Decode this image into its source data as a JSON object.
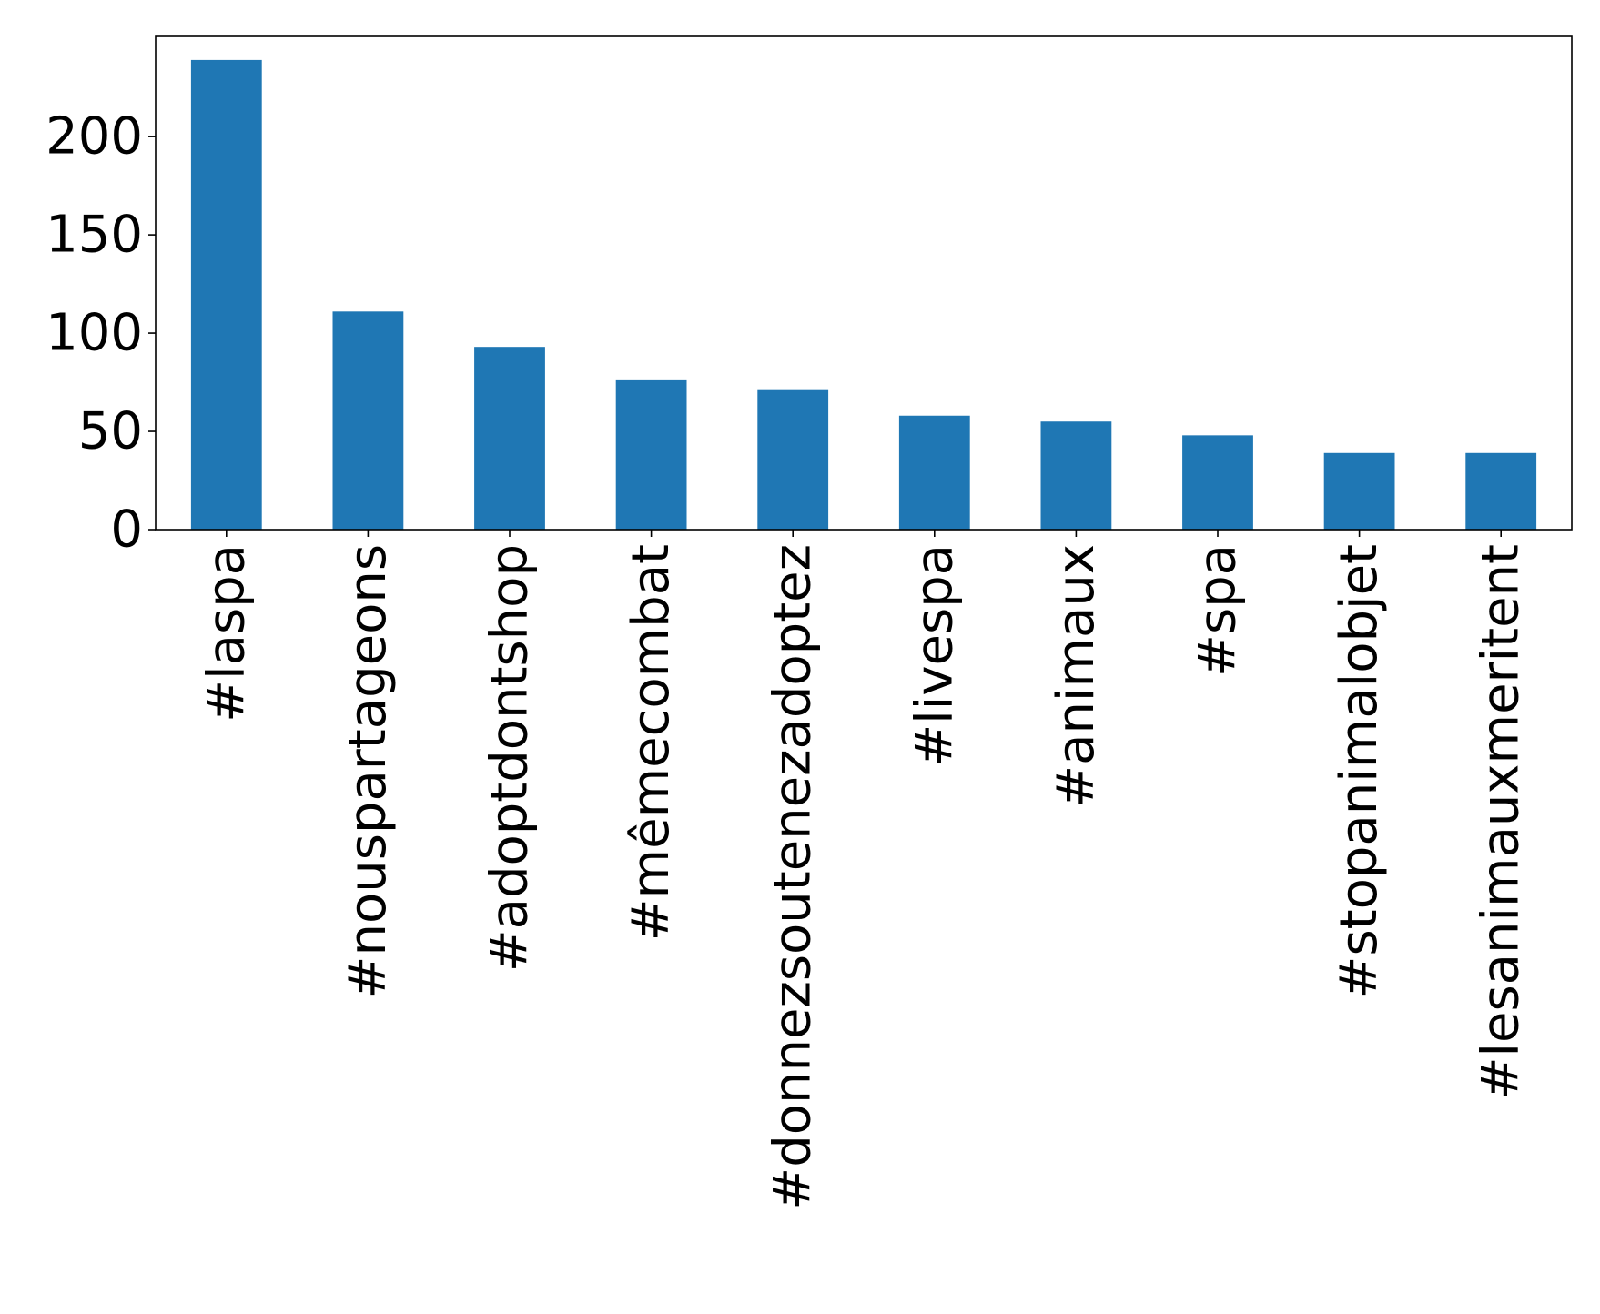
{
  "chart_data": {
    "type": "bar",
    "title": "",
    "xlabel": "",
    "ylabel": "",
    "categories": [
      "#laspa",
      "#nouspartageons",
      "#adoptdontshop",
      "#mêmecombat",
      "#donnezsoutenezadoptez",
      "#livespa",
      "#animaux",
      "#spa",
      "#stopanimalobjet",
      "#lesanimauxmeritent"
    ],
    "values": [
      239,
      111,
      93,
      76,
      71,
      58,
      55,
      48,
      39,
      39
    ],
    "ylim": [
      0,
      251
    ],
    "yticks": [
      0,
      50,
      100,
      150,
      200
    ],
    "grid": false,
    "legend": "none",
    "bar_color": "#1f77b4"
  }
}
